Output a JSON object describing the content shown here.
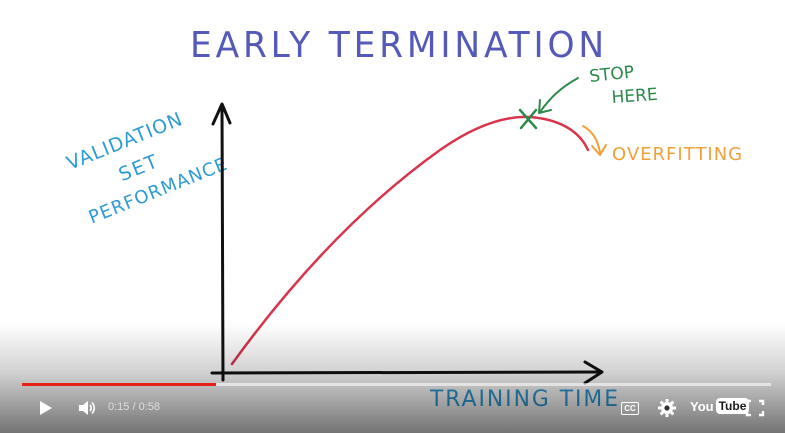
{
  "video": {
    "title_text": "EARLY TERMINATION",
    "y_axis_lines": [
      "VALIDATION",
      "SET",
      "PERFORMANCE"
    ],
    "x_axis_label": "TRAINING TIME",
    "stop_label_lines": [
      "STOP",
      "HERE"
    ],
    "overfitting_label": "OVERFITTING",
    "colors": {
      "title": "#5559b8",
      "axis_labels": "#2e9bd6",
      "curve": "#d8344c",
      "stop": "#2c8a4a",
      "overfitting": "#f0a03a",
      "axes": "#111111"
    }
  },
  "player": {
    "current_time": "0:15",
    "separator": "/",
    "duration": "0:58",
    "progress_fraction": 0.2586,
    "buffered_fraction": 1.0,
    "brand_you": "You",
    "brand_tube": "Tube",
    "cc_label": "CC",
    "icons": {
      "play": "play-icon",
      "volume": "volume-icon",
      "cc": "captions-icon",
      "settings": "gear-icon",
      "youtube": "youtube-logo",
      "fullscreen": "fullscreen-icon"
    }
  }
}
